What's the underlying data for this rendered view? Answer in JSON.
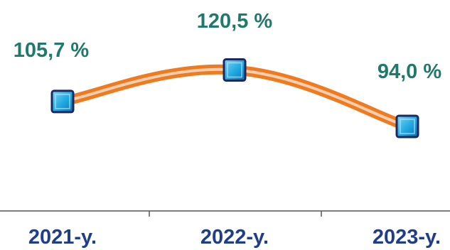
{
  "chart_data": {
    "type": "line",
    "categories": [
      "2021-y.",
      "2022-y.",
      "2023-y."
    ],
    "series": [
      {
        "values": [
          105.7,
          120.5,
          94.0
        ],
        "labels": [
          "105,7 %",
          "120,5 %",
          "94,0 %"
        ]
      }
    ],
    "ylim": [
      40,
      140
    ],
    "grid": false,
    "legend": "none",
    "colors": {
      "line": "#f07a1e",
      "line_highlight": "#f3d0b4",
      "marker_fill": "#1fa8e0",
      "marker_border": "#1a2a5e",
      "data_label": "#1f7a6b",
      "tick_label": "#1f3d8a",
      "axis": "#555555"
    }
  }
}
